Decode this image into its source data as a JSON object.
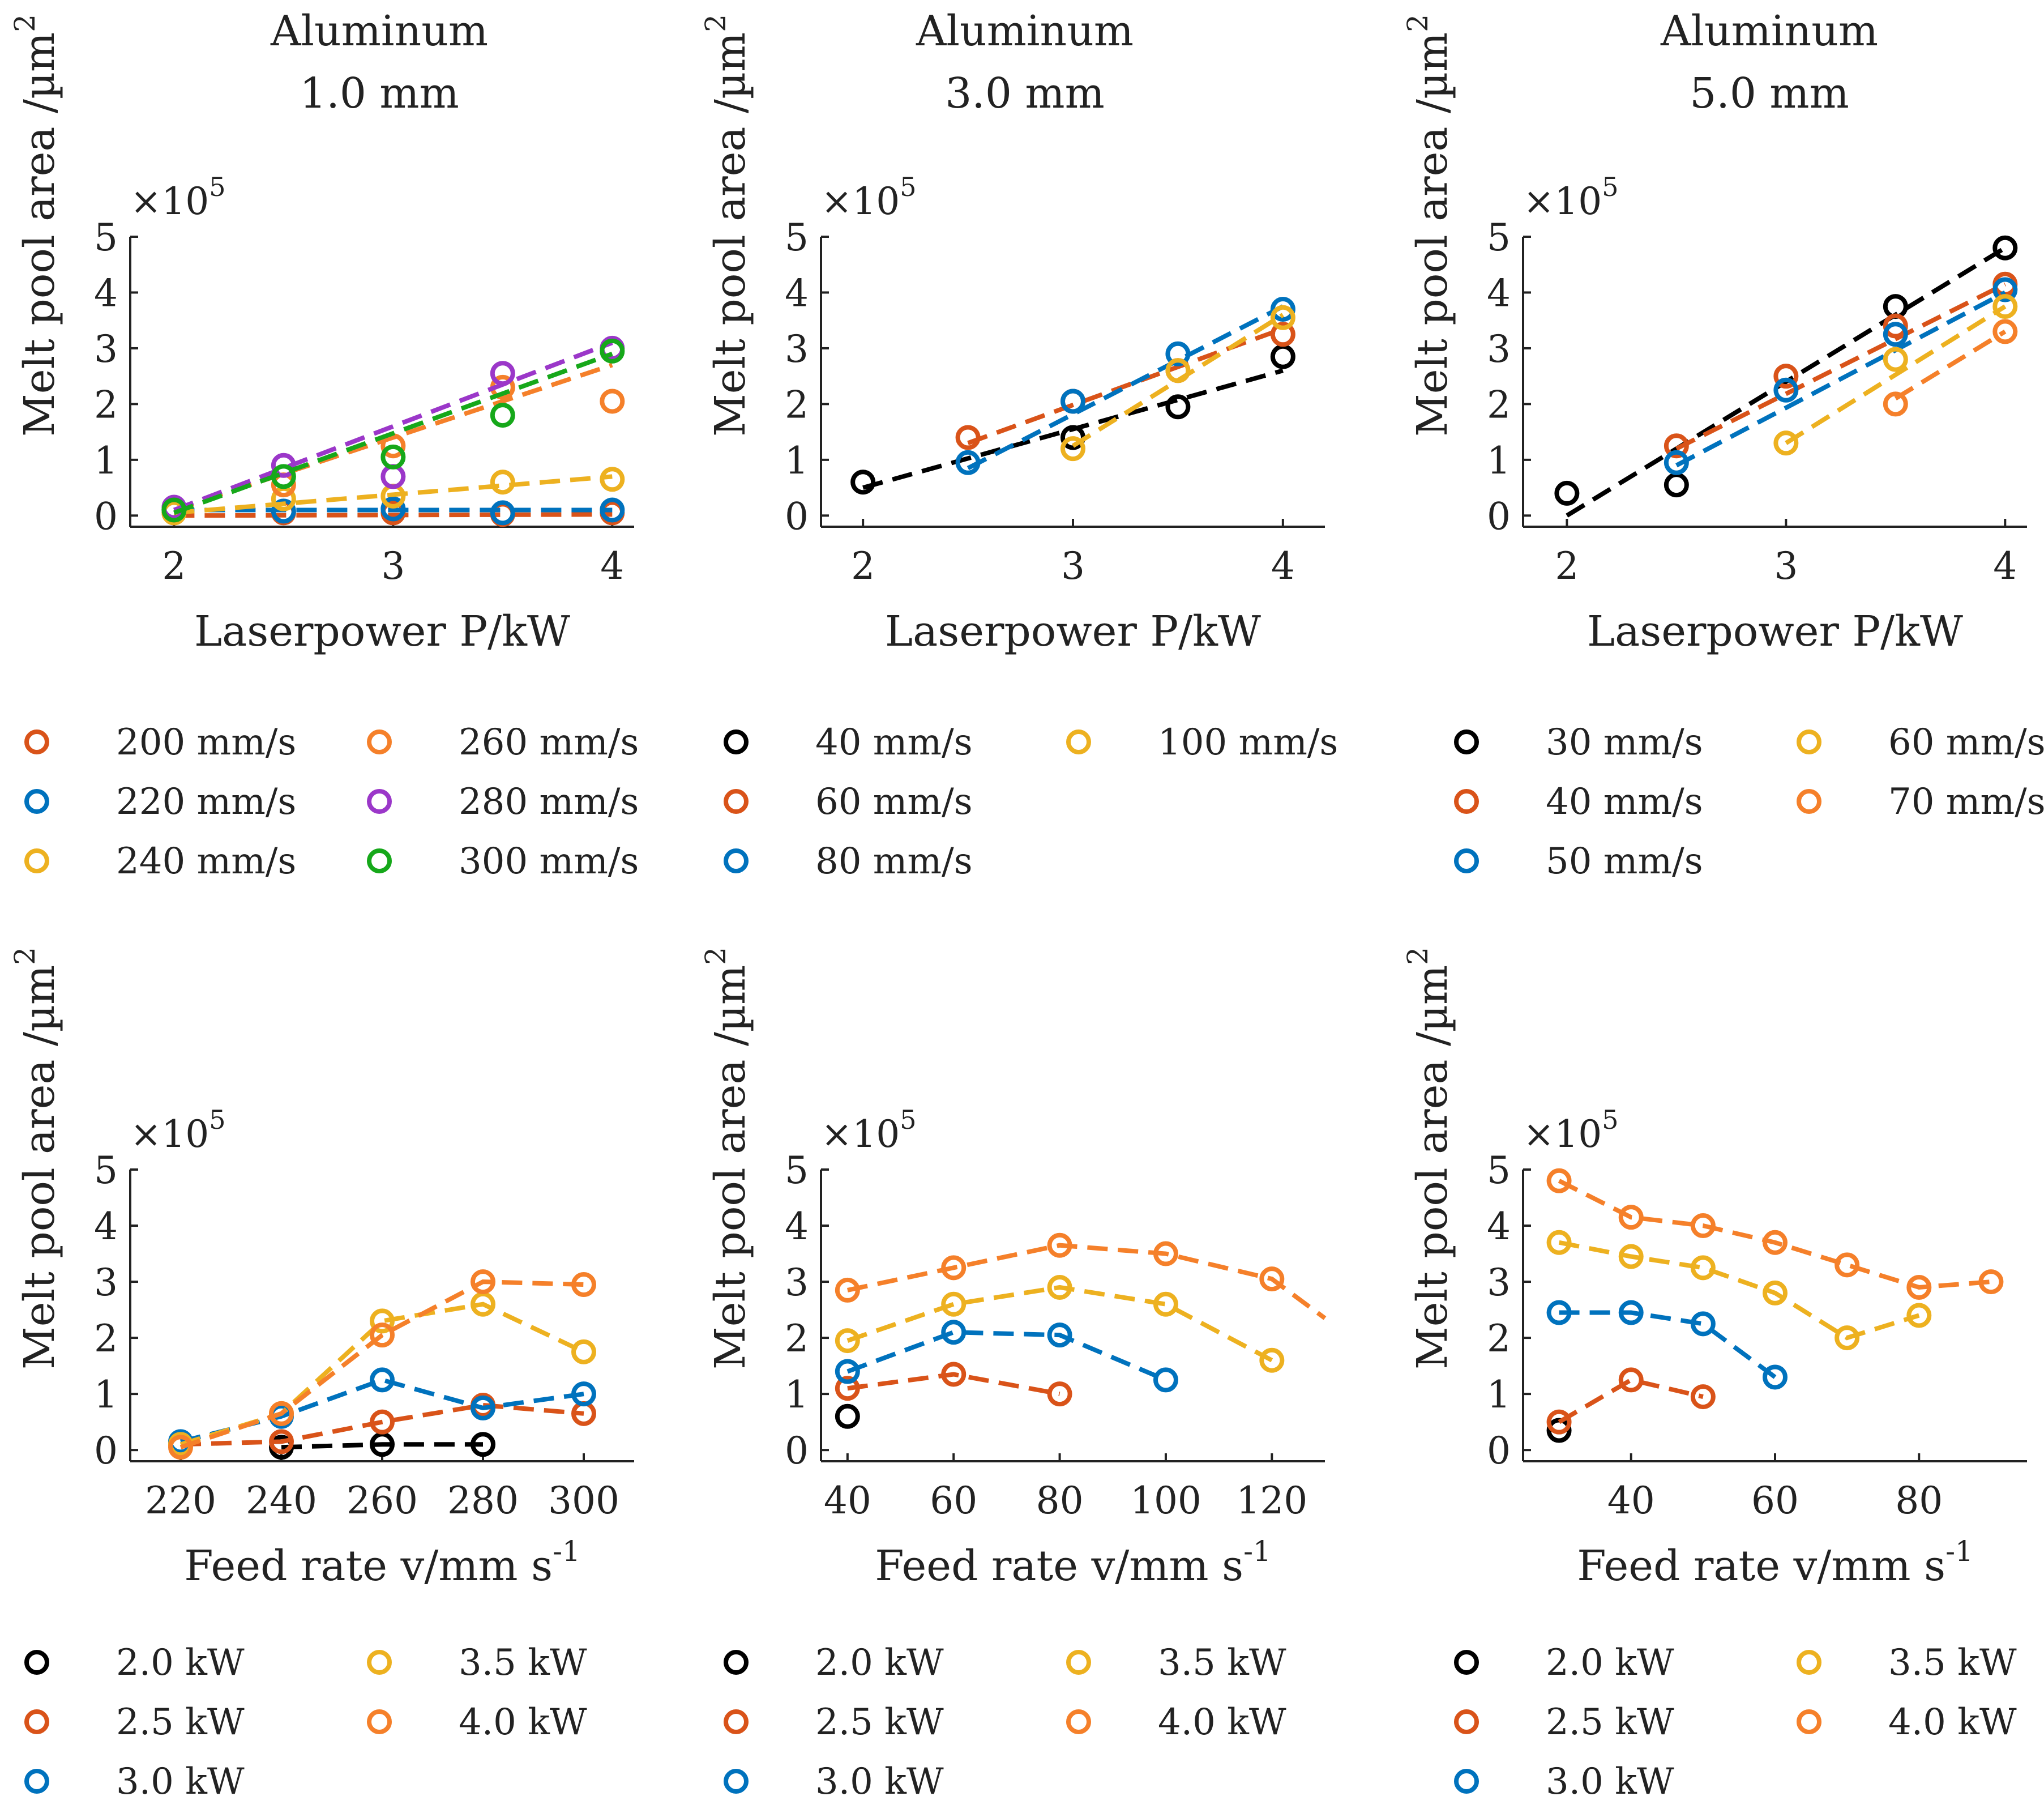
{
  "colors": {
    "black": "#000000",
    "red": "#d95319",
    "blue": "#0072bd",
    "yellow": "#edb120",
    "orange": "#f5802a",
    "purple": "#9b37c9",
    "green": "#16a81a"
  },
  "chart_data": [
    {
      "type": "scatter",
      "title": [
        "Aluminum",
        "1.0 mm"
      ],
      "xlabel": "Laserpower P/kW",
      "ylabel": "Melt pool area /µm",
      "ylabel_sup": "2",
      "y_exponent": "×10",
      "y_exponent_power": "5",
      "xlim": [
        1.8,
        4.1
      ],
      "ylim": [
        -0.2,
        5.0
      ],
      "xticks": [
        2,
        3,
        4
      ],
      "yticks": [
        0,
        1,
        2,
        3,
        4,
        5
      ],
      "legend": {
        "columns": 2,
        "rows": 3
      },
      "series": [
        {
          "name": "200 mm/s",
          "color": "red",
          "x": [
            2,
            2.5,
            3,
            3.5,
            4
          ],
          "y": [
            0.05,
            0.05,
            0.05,
            0.02,
            0.05
          ],
          "fit": [
            0.0,
            0.02
          ]
        },
        {
          "name": "220 mm/s",
          "color": "blue",
          "x": [
            2,
            2.5,
            3,
            3.5,
            4
          ],
          "y": [
            0.1,
            0.08,
            0.12,
            0.05,
            0.1
          ],
          "fit": [
            0.1,
            0.1
          ]
        },
        {
          "name": "240 mm/s",
          "color": "yellow",
          "x": [
            2,
            2.5,
            3,
            3.5,
            4
          ],
          "y": [
            0.05,
            0.3,
            0.35,
            0.6,
            0.65
          ],
          "fit": [
            0.05,
            0.7
          ]
        },
        {
          "name": "260 mm/s",
          "color": "orange",
          "x": [
            2,
            2.5,
            3,
            3.5,
            4
          ],
          "y": [
            0.1,
            0.55,
            1.25,
            2.3,
            2.05
          ],
          "fit": [
            0.1,
            2.7
          ]
        },
        {
          "name": "280 mm/s",
          "color": "purple",
          "x": [
            2,
            2.5,
            3,
            3.5,
            4
          ],
          "y": [
            0.15,
            0.9,
            0.7,
            2.55,
            3.0
          ],
          "fit": [
            0.1,
            3.1
          ]
        },
        {
          "name": "300 mm/s",
          "color": "green",
          "x": [
            2,
            2.5,
            3,
            3.5,
            4
          ],
          "y": [
            0.1,
            0.7,
            1.05,
            1.8,
            2.95
          ],
          "fit": [
            0.05,
            2.9
          ]
        }
      ]
    },
    {
      "type": "scatter",
      "title": [
        "Aluminum",
        "3.0 mm"
      ],
      "xlabel": "Laserpower P/kW",
      "ylabel": "Melt pool area /µm",
      "ylabel_sup": "2",
      "y_exponent": "×10",
      "y_exponent_power": "5",
      "xlim": [
        1.8,
        4.2
      ],
      "ylim": [
        -0.2,
        5.0
      ],
      "xticks": [
        2,
        3,
        4
      ],
      "yticks": [
        0,
        1,
        2,
        3,
        4,
        5
      ],
      "legend": {
        "columns": 2,
        "rows": 3
      },
      "series": [
        {
          "name": "40 mm/s",
          "color": "black",
          "x": [
            2,
            3,
            3.5,
            4
          ],
          "y": [
            0.6,
            1.4,
            1.95,
            2.85
          ],
          "fit": [
            0.5,
            2.6
          ]
        },
        {
          "name": "60 mm/s",
          "color": "red",
          "x": [
            2.5,
            3,
            3.5,
            4
          ],
          "y": [
            1.4,
            2.05,
            2.6,
            3.25
          ],
          "fit": [
            1.3,
            3.35
          ]
        },
        {
          "name": "80 mm/s",
          "color": "blue",
          "x": [
            2.5,
            3,
            3.5,
            4
          ],
          "y": [
            0.95,
            2.05,
            2.9,
            3.7
          ],
          "fit": [
            0.85,
            3.75
          ]
        },
        {
          "name": "100 mm/s",
          "color": "yellow",
          "x": [
            3,
            3.5,
            4
          ],
          "y": [
            1.2,
            2.6,
            3.55
          ],
          "fit": [
            1.25,
            3.6
          ]
        }
      ]
    },
    {
      "type": "scatter",
      "title": [
        "Aluminum",
        "5.0 mm"
      ],
      "xlabel": "Laserpower P/kW",
      "ylabel": "Melt pool area /µm",
      "ylabel_sup": "2",
      "y_exponent": "×10",
      "y_exponent_power": "5",
      "xlim": [
        1.8,
        4.1
      ],
      "ylim": [
        -0.2,
        5.0
      ],
      "xticks": [
        2,
        3,
        4
      ],
      "yticks": [
        0,
        1,
        2,
        3,
        4,
        5
      ],
      "legend": {
        "columns": 2,
        "rows": 3
      },
      "series": [
        {
          "name": "30 mm/s",
          "color": "black",
          "x": [
            2,
            2.5,
            3.5,
            4
          ],
          "y": [
            0.4,
            0.55,
            3.75,
            4.8
          ],
          "fit": [
            2.0,
            0.0,
            4.0,
            4.8
          ]
        },
        {
          "name": "40 mm/s",
          "color": "red",
          "x": [
            2.5,
            3,
            3.5,
            4
          ],
          "y": [
            1.25,
            2.5,
            3.4,
            4.15
          ],
          "fit": [
            2.5,
            1.2,
            4.0,
            4.15
          ]
        },
        {
          "name": "50 mm/s",
          "color": "blue",
          "x": [
            2.5,
            3,
            3.5,
            4
          ],
          "y": [
            0.95,
            2.25,
            3.25,
            4.05
          ],
          "fit": [
            2.5,
            0.9,
            4.0,
            4.0
          ]
        },
        {
          "name": "60 mm/s",
          "color": "yellow",
          "x": [
            3,
            3.5,
            4
          ],
          "y": [
            1.3,
            2.8,
            3.75
          ],
          "fit": [
            3.0,
            1.3,
            4.0,
            3.75
          ]
        },
        {
          "name": "70 mm/s",
          "color": "orange",
          "x": [
            3.5,
            4
          ],
          "y": [
            2.0,
            3.3
          ],
          "fit": [
            3.5,
            2.1,
            4.0,
            3.3
          ]
        }
      ]
    },
    {
      "type": "line",
      "title": [],
      "xlabel": "Feed rate v/mm s",
      "xlabel_sup": "-1",
      "ylabel": "Melt pool area /µm",
      "ylabel_sup": "2",
      "y_exponent": "×10",
      "y_exponent_power": "5",
      "xlim": [
        210,
        310
      ],
      "ylim": [
        -0.2,
        5.0
      ],
      "xticks": [
        220,
        240,
        260,
        280,
        300
      ],
      "yticks": [
        0,
        1,
        2,
        3,
        4,
        5
      ],
      "legend": {
        "columns": 2,
        "rows": 3
      },
      "series": [
        {
          "name": "2.0 kW",
          "color": "black",
          "x": [
            240,
            260,
            280
          ],
          "y": [
            0.05,
            0.1,
            0.1
          ]
        },
        {
          "name": "2.5 kW",
          "color": "red",
          "x": [
            220,
            240,
            260,
            280,
            300
          ],
          "y": [
            0.1,
            0.15,
            0.5,
            0.8,
            0.65
          ]
        },
        {
          "name": "3.0 kW",
          "color": "blue",
          "x": [
            220,
            240,
            260,
            280,
            300
          ],
          "y": [
            0.15,
            0.6,
            1.25,
            0.75,
            1.0
          ]
        },
        {
          "name": "3.5 kW",
          "color": "yellow",
          "x": [
            220,
            240,
            260,
            280,
            300
          ],
          "y": [
            0.1,
            0.65,
            2.3,
            2.6,
            1.75
          ]
        },
        {
          "name": "4.0 kW",
          "color": "orange",
          "x": [
            220,
            240,
            260,
            280,
            300
          ],
          "y": [
            0.05,
            0.65,
            2.05,
            3.0,
            2.95
          ]
        }
      ]
    },
    {
      "type": "line",
      "title": [],
      "xlabel": "Feed rate v/mm s",
      "xlabel_sup": "-1",
      "ylabel": "Melt pool area /µm",
      "ylabel_sup": "2",
      "y_exponent": "×10",
      "y_exponent_power": "5",
      "xlim": [
        35,
        130
      ],
      "ylim": [
        -0.2,
        5.0
      ],
      "xticks": [
        40,
        60,
        80,
        100,
        120
      ],
      "yticks": [
        0,
        1,
        2,
        3,
        4,
        5
      ],
      "legend": {
        "columns": 2,
        "rows": 3
      },
      "series": [
        {
          "name": "2.0 kW",
          "color": "black",
          "x": [
            40
          ],
          "y": [
            0.6
          ]
        },
        {
          "name": "2.5 kW",
          "color": "red",
          "x": [
            40,
            60,
            80
          ],
          "y": [
            1.1,
            1.35,
            1.0
          ]
        },
        {
          "name": "3.0 kW",
          "color": "blue",
          "x": [
            40,
            60,
            80,
            100
          ],
          "y": [
            1.4,
            2.1,
            2.05,
            1.25
          ]
        },
        {
          "name": "3.5 kW",
          "color": "yellow",
          "x": [
            40,
            60,
            80,
            100,
            120
          ],
          "y": [
            1.95,
            2.6,
            2.9,
            2.6,
            1.6
          ]
        },
        {
          "name": "4.0 kW",
          "color": "orange",
          "x": [
            40,
            60,
            80,
            100,
            120,
            130
          ],
          "y": [
            2.85,
            3.25,
            3.65,
            3.5,
            3.05,
            2.35
          ]
        }
      ]
    },
    {
      "type": "line",
      "title": [],
      "xlabel": "Feed rate v/mm s",
      "xlabel_sup": "-1",
      "ylabel": "Melt pool area /µm",
      "ylabel_sup": "2",
      "y_exponent": "×10",
      "y_exponent_power": "5",
      "xlim": [
        25,
        95
      ],
      "ylim": [
        -0.2,
        5.0
      ],
      "xticks": [
        40,
        60,
        80
      ],
      "yticks": [
        0,
        1,
        2,
        3,
        4,
        5
      ],
      "legend": {
        "columns": 2,
        "rows": 3
      },
      "series": [
        {
          "name": "2.0 kW",
          "color": "black",
          "x": [
            30
          ],
          "y": [
            0.35
          ]
        },
        {
          "name": "2.5 kW",
          "color": "red",
          "x": [
            30,
            40,
            50
          ],
          "y": [
            0.5,
            1.25,
            0.95
          ]
        },
        {
          "name": "3.0 kW",
          "color": "blue",
          "x": [
            30,
            40,
            50,
            60
          ],
          "y": [
            2.45,
            2.45,
            2.25,
            1.3
          ]
        },
        {
          "name": "3.5 kW",
          "color": "yellow",
          "x": [
            30,
            40,
            50,
            60,
            70,
            80
          ],
          "y": [
            3.7,
            3.45,
            3.25,
            2.8,
            2.0,
            2.4
          ]
        },
        {
          "name": "4.0 kW",
          "color": "orange",
          "x": [
            30,
            40,
            50,
            60,
            70,
            80,
            90
          ],
          "y": [
            4.8,
            4.15,
            4.0,
            3.7,
            3.3,
            2.9,
            3.0
          ]
        }
      ]
    }
  ]
}
